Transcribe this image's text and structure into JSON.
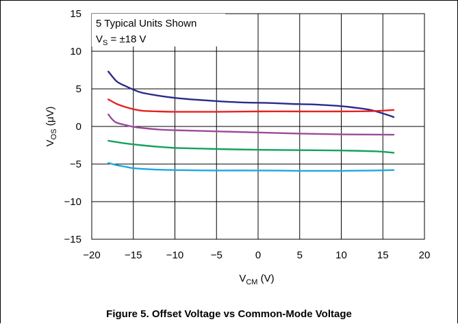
{
  "figure": {
    "caption": "Figure 5. Offset Voltage vs Common-Mode Voltage"
  },
  "chart_data": {
    "type": "line",
    "annotation": {
      "line1": "5 Typical Units Shown",
      "line2_main": "V",
      "line2_sub": "S",
      "line2_rest": " = ±18 V"
    },
    "xlabel": {
      "main": "V",
      "sub": "CM",
      "rest": " (V)"
    },
    "ylabel": {
      "main": "V",
      "sub": "OS",
      "rest": " (μV)"
    },
    "xlim": [
      -20,
      20
    ],
    "ylim": [
      -15,
      15
    ],
    "xticks": [
      -20,
      -15,
      -10,
      -5,
      0,
      5,
      10,
      15,
      20
    ],
    "yticks": [
      15,
      10,
      5,
      0,
      -5,
      -10,
      -15
    ],
    "xtick_labels": [
      "−20",
      "−15",
      "−10",
      "−5",
      "0",
      "5",
      "10",
      "15",
      "20"
    ],
    "ytick_labels": [
      "15",
      "10",
      "5",
      "0",
      "−5",
      "−10",
      "−15"
    ],
    "grid": true,
    "series": [
      {
        "color": "#2a2a8c",
        "x": [
          -18,
          -17,
          -16,
          -15,
          -14,
          -12,
          -10,
          -8,
          -6,
          -4,
          -2,
          0,
          2,
          4,
          6,
          8,
          10,
          12,
          13.5,
          14.5,
          15.5,
          16.3
        ],
        "y": [
          7.3,
          6.0,
          5.4,
          4.9,
          4.5,
          4.1,
          3.8,
          3.6,
          3.45,
          3.3,
          3.2,
          3.15,
          3.1,
          3.0,
          2.95,
          2.85,
          2.7,
          2.45,
          2.2,
          1.9,
          1.55,
          1.25
        ]
      },
      {
        "color": "#e52121",
        "x": [
          -18,
          -17,
          -16,
          -15,
          -14,
          -12,
          -10,
          -8,
          -5,
          0,
          5,
          10,
          14,
          16.3
        ],
        "y": [
          3.6,
          3.0,
          2.6,
          2.3,
          2.1,
          2.0,
          1.95,
          1.95,
          1.95,
          2.0,
          2.0,
          2.0,
          2.05,
          2.2
        ]
      },
      {
        "color": "#9b4a9b",
        "x": [
          -18,
          -17.5,
          -17,
          -16,
          -15,
          -14,
          -12,
          -10,
          -5,
          0,
          5,
          10,
          16.3
        ],
        "y": [
          1.6,
          0.9,
          0.5,
          0.2,
          -0.05,
          -0.2,
          -0.4,
          -0.5,
          -0.65,
          -0.8,
          -0.95,
          -1.05,
          -1.1
        ]
      },
      {
        "color": "#11a25a",
        "x": [
          -18,
          -16,
          -14,
          -12,
          -10,
          -5,
          0,
          5,
          10,
          14,
          16.3
        ],
        "y": [
          -1.9,
          -2.25,
          -2.5,
          -2.7,
          -2.85,
          -3.0,
          -3.1,
          -3.15,
          -3.2,
          -3.3,
          -3.5
        ]
      },
      {
        "color": "#1ea6e0",
        "x": [
          -18,
          -17,
          -16,
          -15,
          -13,
          -10,
          -5,
          0,
          5,
          10,
          14,
          16.3
        ],
        "y": [
          -4.85,
          -5.15,
          -5.35,
          -5.55,
          -5.7,
          -5.8,
          -5.85,
          -5.85,
          -5.9,
          -5.9,
          -5.85,
          -5.8
        ]
      }
    ]
  }
}
